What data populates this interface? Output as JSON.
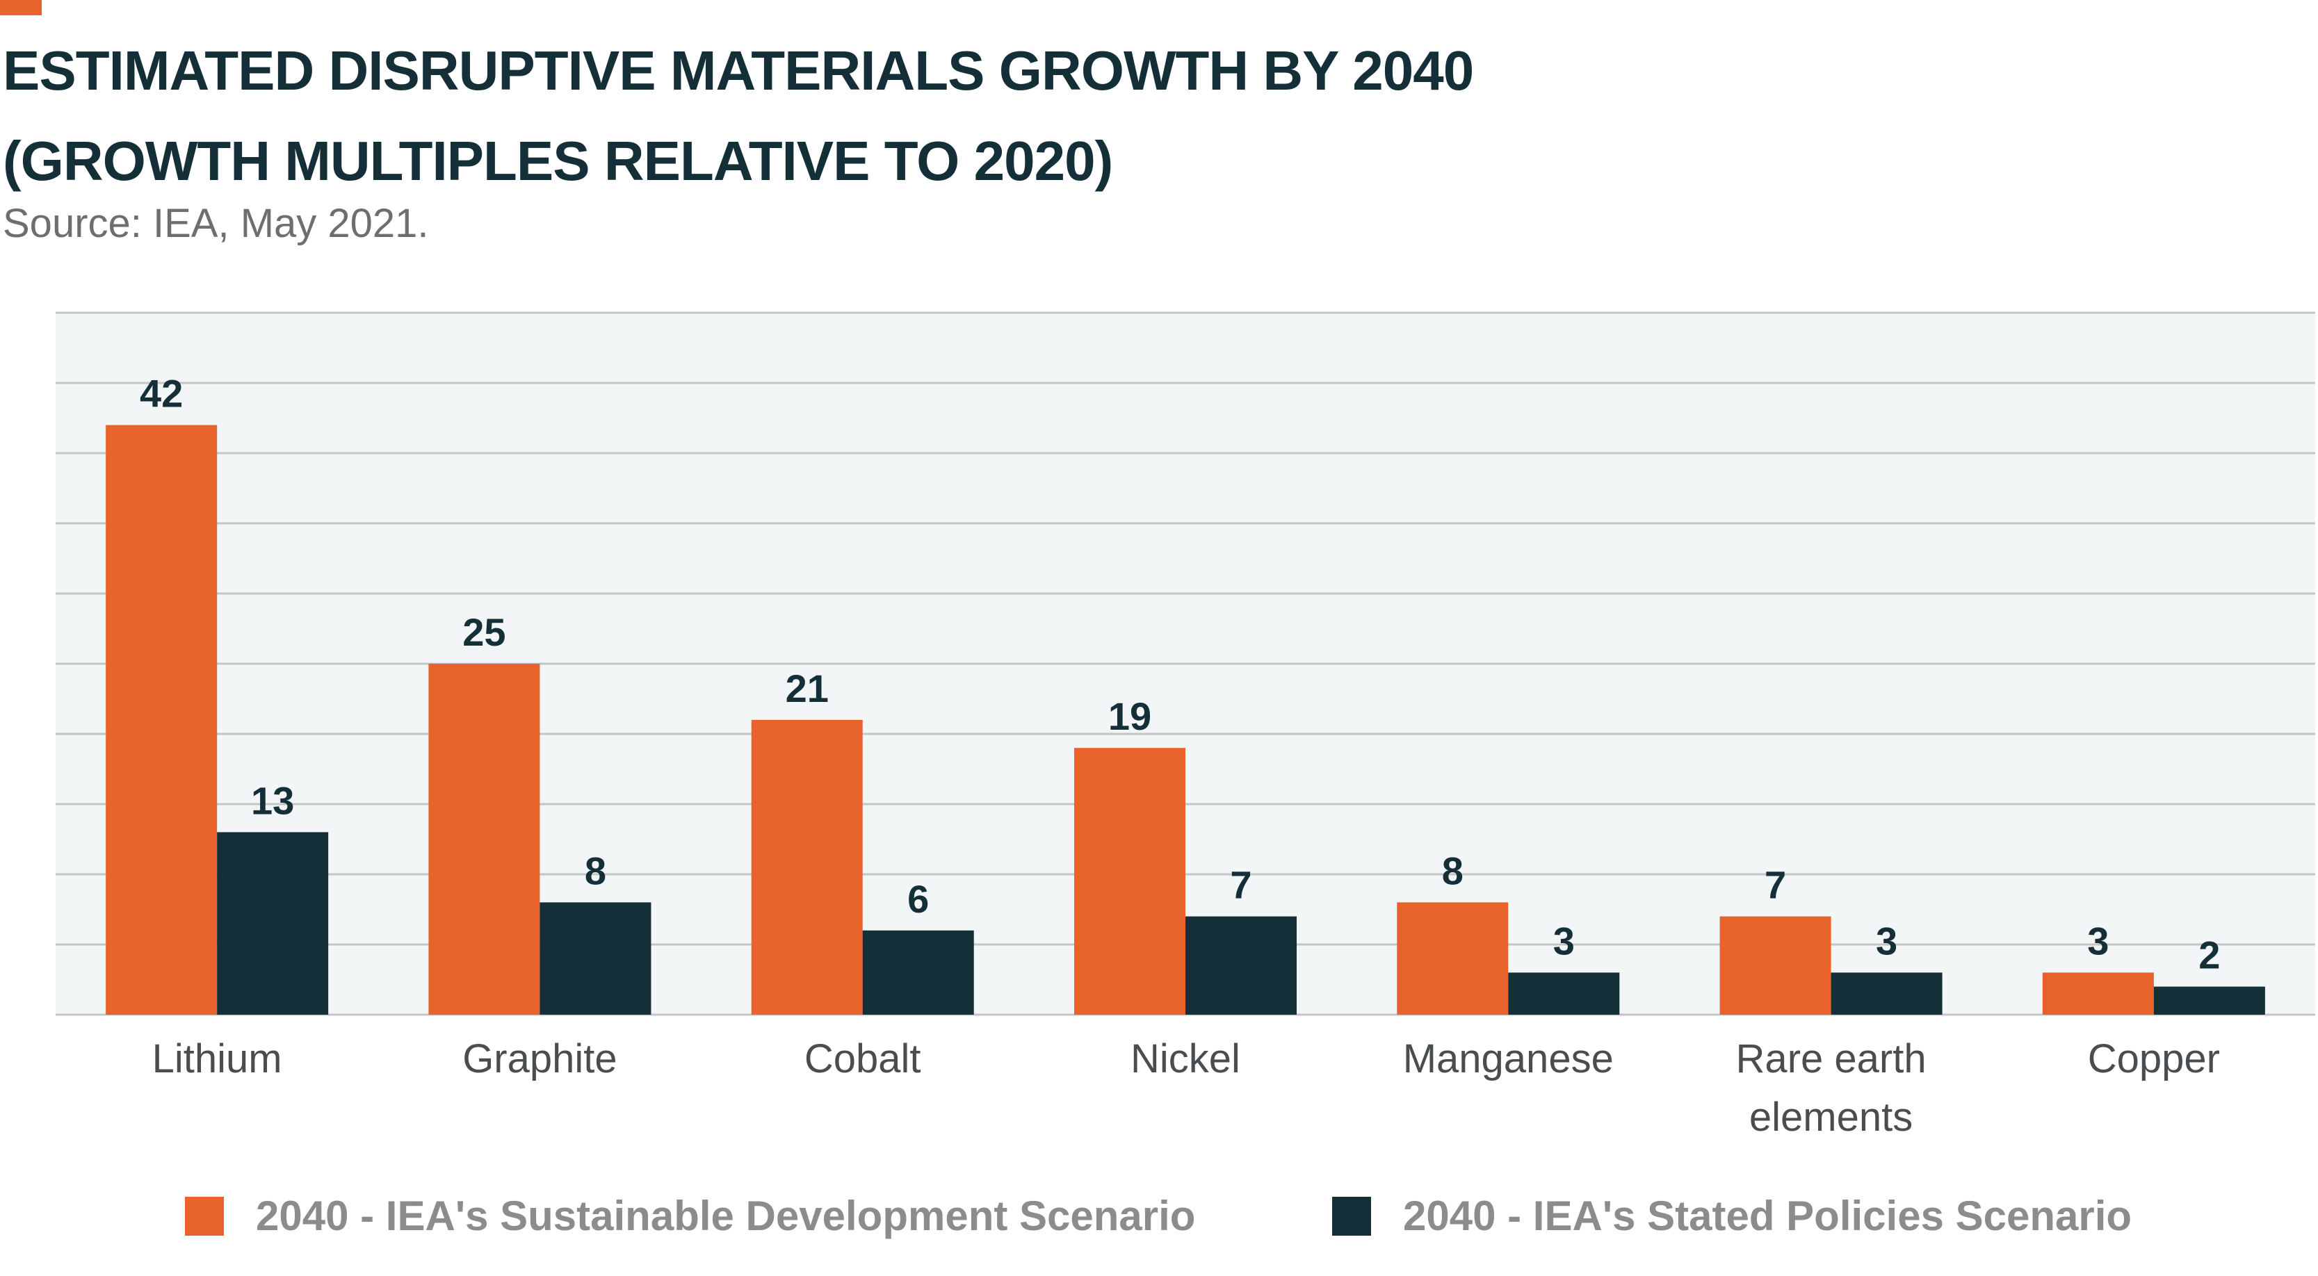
{
  "header": {
    "title_line1": "ESTIMATED DISRUPTIVE MATERIALS GROWTH BY 2040",
    "title_line2": "(GROWTH MULTIPLES RELATIVE TO 2020)",
    "source": "Source: IEA, May 2021."
  },
  "colors": {
    "accent": "#e8622c",
    "sds": "#e8622c",
    "steps": "#142f38",
    "title": "#142f38",
    "plot_bg": "#f2f6f6",
    "gridline": "#c4c6c6"
  },
  "legend": {
    "sds_label": "2040 - IEA's Sustainable Development Scenario",
    "steps_label": "2040 - IEA's Stated Policies Scenario"
  },
  "chart_data": {
    "type": "bar",
    "categories": [
      [
        "Lithium"
      ],
      [
        "Graphite"
      ],
      [
        "Cobalt"
      ],
      [
        "Nickel"
      ],
      [
        "Manganese"
      ],
      [
        "Rare earth",
        "elements"
      ],
      [
        "Copper"
      ]
    ],
    "series": [
      {
        "name": "2040 - IEA's Sustainable Development Scenario",
        "values": [
          42,
          25,
          21,
          19,
          8,
          7,
          3
        ]
      },
      {
        "name": "2040 - IEA's Stated Policies Scenario",
        "values": [
          13,
          8,
          6,
          7,
          3,
          3,
          2
        ]
      }
    ],
    "ylim": [
      0,
      50
    ],
    "grid": true,
    "legend_position": "bottom"
  }
}
